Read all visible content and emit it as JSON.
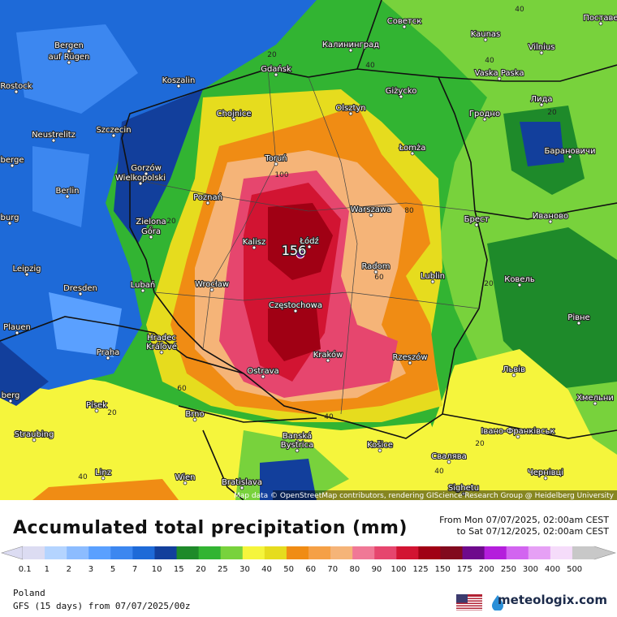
{
  "title": "Accumulated total precipitation (mm)",
  "period": [
    "From Mon 07/07/2025, 02:00am CEST",
    "to Sat 07/12/2025, 02:00am CEST"
  ],
  "legend": {
    "labels": [
      0.1,
      1,
      2,
      3,
      5,
      7,
      10,
      15,
      20,
      25,
      30,
      40,
      50,
      60,
      70,
      80,
      90,
      100,
      125,
      150,
      175,
      200,
      250,
      300,
      400,
      500
    ],
    "colors": [
      "#dcdcf2",
      "#b4d4ff",
      "#8cbcff",
      "#5aa0ff",
      "#3c87f0",
      "#1e6ad8",
      "#123f9c",
      "#1e8a2a",
      "#32b432",
      "#78d23c",
      "#f5f53c",
      "#e6dc1e",
      "#f08c14",
      "#f5a046",
      "#f5b478",
      "#f07896",
      "#e6466e",
      "#d21432",
      "#a00014",
      "#820a1e",
      "#6e0a8c",
      "#b41edc",
      "#d264f0",
      "#e6a0f5",
      "#f5dcfa",
      "#c8c8c8"
    ]
  },
  "map": {
    "cities": [
      "Советск",
      "Kaunas",
      "Vilnius",
      "Bergen",
      "auf Rügen",
      "Калининград",
      "Gdańsk",
      "Rostock",
      "Koszalin",
      "Vaska Paska",
      "Лида",
      "Olsztyn",
      "Giżycko",
      "Chojnice",
      "Гродно",
      "Neustrelitz",
      "Szczecin",
      "Łomża",
      "Барановичи",
      "Toruń",
      "berge",
      "Gorzów",
      "Wielkopolski",
      "Berlin",
      "Poznań",
      "Warszawa",
      "Брест",
      "Иваново",
      "burg",
      "Zielona",
      "Góra",
      "Kalisz",
      "Łódź",
      "Leipzig",
      "Radom",
      "Lublin",
      "Dresden",
      "Lubań",
      "Wrocław",
      "Ковель",
      "Częstochowa",
      "Plauen",
      "Hradec",
      "Králové",
      "Рівне",
      "Praha",
      "Kraków",
      "Rzeszów",
      "Львів",
      "Ostrava",
      "berg",
      "Písek",
      "Хмельни",
      "Brno",
      "Banská",
      "Bystrica",
      "Košice",
      "Straubing",
      "Івано-Франківськ",
      "Свалява",
      "Linz",
      "Wien",
      "Bratislava",
      "Чернівці",
      "Sighetu",
      "Поставе"
    ],
    "contours": [
      40,
      20,
      40,
      40,
      20,
      100,
      80,
      20,
      60,
      20,
      60,
      20,
      40,
      20,
      40,
      40
    ],
    "max": 156,
    "attribution": "Map data © OpenStreetMap contributors, rendering GIScience Research Group @ Heidelberg University"
  },
  "footer": {
    "region": "Poland",
    "model": "GFS (15 days) from 07/07/2025/00z"
  },
  "brand": "meteologix.com"
}
